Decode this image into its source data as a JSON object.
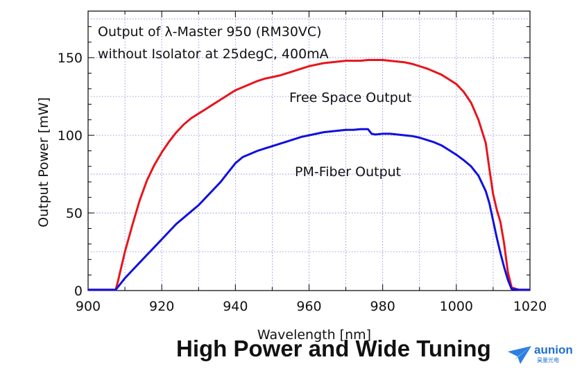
{
  "chart_data": {
    "type": "line",
    "title_lines": [
      "Output of λ-Master 950 (RM30VC)",
      "without Isolator at 25degC, 400mA"
    ],
    "xlabel": "Wavelength [nm]",
    "ylabel": "Output Power [mW]",
    "xlim": [
      900,
      1020
    ],
    "ylim": [
      0,
      180
    ],
    "xticks": [
      900,
      920,
      940,
      960,
      980,
      1000,
      1020
    ],
    "yticks": [
      0,
      50,
      100,
      150
    ],
    "grid": true,
    "series": [
      {
        "name": "Free Space Output",
        "color": "#e8141c",
        "x": [
          900,
          907.5,
          908,
          909,
          910,
          912,
          914,
          916,
          918,
          920,
          922,
          924,
          926,
          928,
          930,
          932,
          934,
          936,
          938,
          940,
          942,
          944,
          946,
          948,
          950,
          952,
          954,
          956,
          958,
          960,
          962,
          964,
          966,
          968,
          970,
          972,
          974,
          976,
          978,
          980,
          982,
          984,
          986,
          988,
          990,
          992,
          994,
          996,
          998,
          1000,
          1002,
          1004,
          1006,
          1008,
          1009,
          1010,
          1011,
          1012,
          1013,
          1014,
          1015,
          1017,
          1020
        ],
        "values": [
          0.5,
          0.5,
          5,
          15,
          25,
          42,
          58,
          71,
          81,
          89,
          96,
          102,
          107,
          111,
          114,
          117,
          120,
          123,
          126,
          129,
          131,
          133,
          135,
          136.5,
          137.5,
          138.5,
          140,
          141.5,
          143,
          144.5,
          145.5,
          146.5,
          147,
          147.5,
          148,
          148,
          148,
          148.5,
          148.5,
          148.5,
          148,
          147.5,
          147,
          146,
          144.5,
          143,
          141,
          139,
          136,
          133,
          128,
          121,
          110,
          95,
          78,
          62,
          52,
          44,
          30,
          12,
          2,
          0.5,
          0.5
        ]
      },
      {
        "name": "PM-Fiber Output",
        "color": "#1010e0",
        "x": [
          900,
          907.5,
          908,
          910,
          912,
          914,
          916,
          918,
          920,
          922,
          924,
          926,
          928,
          930,
          932,
          934,
          936,
          938,
          940,
          942,
          944,
          946,
          948,
          950,
          952,
          954,
          956,
          958,
          960,
          962,
          964,
          966,
          968,
          970,
          972,
          974,
          976,
          977,
          978,
          980,
          982,
          984,
          986,
          988,
          990,
          992,
          994,
          996,
          998,
          1000,
          1002,
          1004,
          1006,
          1008,
          1009,
          1010,
          1011,
          1012,
          1013,
          1014,
          1015,
          1017,
          1020
        ],
        "values": [
          0.5,
          0.5,
          2,
          8,
          13,
          18,
          23,
          28,
          33,
          38,
          43,
          47,
          51,
          55,
          60,
          65,
          70,
          76,
          82,
          86,
          88,
          90,
          91.5,
          93,
          94.5,
          96,
          97.5,
          99,
          100,
          101,
          102,
          102.5,
          103,
          103.5,
          103.5,
          104,
          104,
          101,
          100.5,
          101,
          101,
          100.5,
          100,
          99.5,
          98.5,
          97,
          95.5,
          93.5,
          90.5,
          87.5,
          84,
          80,
          74,
          64,
          56,
          45,
          34,
          24,
          15,
          7,
          1,
          0.5,
          0.5
        ]
      }
    ],
    "annotations": [
      "Free Space Output",
      "PM-Fiber Output"
    ]
  },
  "footer": {
    "headline": "High Power and Wide Tuning",
    "logo_text": "aunion",
    "logo_subtext": "昊量光电"
  }
}
